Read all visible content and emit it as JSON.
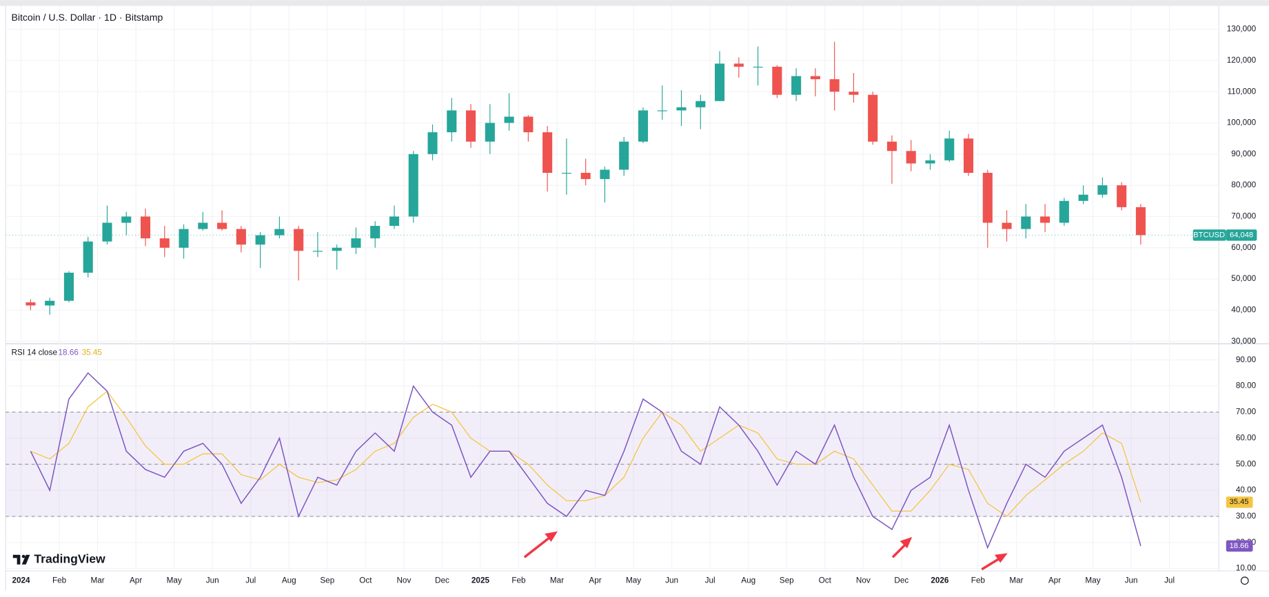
{
  "chart_data": [
    {
      "type": "candlestick",
      "title": "Bitcoin / U.S. Dollar · 1D · Bitstamp",
      "symbol": "BTCUSD",
      "last_price_label": "64,048",
      "up_color": "#26a69a",
      "down_color": "#ef5350",
      "grid": true,
      "categories": [
        "2024",
        null,
        "Feb",
        null,
        "Mar",
        null,
        "Apr",
        null,
        "May",
        null,
        "Jun",
        null,
        "Jul",
        null,
        "Aug",
        null,
        "Sep",
        null,
        "Oct",
        null,
        "Nov",
        null,
        "Dec",
        null,
        "2025",
        null,
        "Feb",
        null,
        "Mar",
        null,
        "Apr",
        null,
        "May",
        null,
        "Jun",
        null,
        "Jul",
        null,
        "Aug",
        null,
        "Sep",
        null,
        "Oct",
        null,
        "Nov",
        null,
        "Dec",
        null,
        "2026",
        null,
        "Feb",
        null,
        "Mar",
        null,
        "Apr",
        null,
        "May",
        null,
        "Jun",
        null,
        "Jul",
        null
      ],
      "ohlc": [
        [
          42500,
          43500,
          40000,
          41500
        ],
        [
          41500,
          44000,
          38500,
          43000
        ],
        [
          43000,
          52500,
          42500,
          52000
        ],
        [
          52000,
          63500,
          50500,
          62000
        ],
        [
          62000,
          73500,
          61000,
          68000
        ],
        [
          68000,
          71500,
          64000,
          70000
        ],
        [
          70000,
          72500,
          60500,
          63000
        ],
        [
          63000,
          67000,
          57000,
          60000
        ],
        [
          60000,
          67500,
          56500,
          66000
        ],
        [
          66000,
          71500,
          65500,
          68000
        ],
        [
          68000,
          72000,
          65500,
          66000
        ],
        [
          66000,
          67000,
          58500,
          61000
        ],
        [
          61000,
          65000,
          53500,
          64000
        ],
        [
          64000,
          70000,
          63000,
          66000
        ],
        [
          66000,
          67000,
          49500,
          59000
        ],
        [
          59000,
          65000,
          57000,
          59000
        ],
        [
          59000,
          61000,
          53000,
          60000
        ],
        [
          60000,
          66500,
          58000,
          63000
        ],
        [
          63000,
          68500,
          60000,
          67000
        ],
        [
          67000,
          73500,
          66000,
          70000
        ],
        [
          70000,
          91000,
          68000,
          90000
        ],
        [
          90000,
          99500,
          88000,
          97000
        ],
        [
          97000,
          108000,
          94000,
          104000
        ],
        [
          104000,
          106000,
          92000,
          94000
        ],
        [
          94000,
          106000,
          90000,
          100000
        ],
        [
          100000,
          109500,
          97500,
          102000
        ],
        [
          102000,
          102500,
          94000,
          97000
        ],
        [
          97000,
          99000,
          78000,
          84000
        ],
        [
          84000,
          95000,
          77000,
          84000
        ],
        [
          84000,
          88500,
          80000,
          82000
        ],
        [
          82000,
          86000,
          74500,
          85000
        ],
        [
          85000,
          95500,
          83000,
          94000
        ],
        [
          94000,
          105000,
          93500,
          104000
        ],
        [
          104000,
          112000,
          101000,
          104000
        ],
        [
          104000,
          110500,
          99000,
          105000
        ],
        [
          105000,
          109000,
          98000,
          107000
        ],
        [
          107000,
          123000,
          107000,
          119000
        ],
        [
          119000,
          121000,
          114500,
          118000
        ],
        [
          118000,
          124500,
          112000,
          118000
        ],
        [
          118000,
          118500,
          108000,
          109000
        ],
        [
          109000,
          117500,
          107000,
          115000
        ],
        [
          115000,
          117500,
          108500,
          114000
        ],
        [
          114000,
          126000,
          104000,
          110000
        ],
        [
          110000,
          116000,
          106500,
          109000
        ],
        [
          109000,
          110000,
          93000,
          94000
        ],
        [
          94000,
          96000,
          80500,
          91000
        ],
        [
          91000,
          94500,
          84500,
          87000
        ],
        [
          87000,
          90000,
          85000,
          88000
        ],
        [
          88000,
          97500,
          87500,
          95000
        ],
        [
          95000,
          96500,
          83000,
          84000
        ],
        [
          84000,
          85000,
          60000,
          68000
        ],
        [
          68000,
          72000,
          62000,
          66000
        ],
        [
          66000,
          74000,
          63000,
          70000
        ],
        [
          70000,
          74000,
          65000,
          68000
        ],
        [
          68000,
          76000,
          67000,
          75000
        ],
        [
          75000,
          80000,
          74000,
          77000
        ],
        [
          77000,
          82500,
          76000,
          80000
        ],
        [
          80000,
          81000,
          72000,
          73000
        ],
        [
          73000,
          74000,
          61000,
          64048
        ],
        null,
        null,
        null
      ],
      "ylim": [
        30000,
        130000
      ],
      "yticks": [
        {
          "value": 30000,
          "label": "30,000"
        },
        {
          "value": 40000,
          "label": "40,000"
        },
        {
          "value": 50000,
          "label": "50,000"
        },
        {
          "value": 60000,
          "label": "60,000"
        },
        {
          "value": 70000,
          "label": "70,000"
        },
        {
          "value": 80000,
          "label": "80,000"
        },
        {
          "value": 90000,
          "label": "90,000"
        },
        {
          "value": 100000,
          "label": "100,000"
        },
        {
          "value": 110000,
          "label": "110,000"
        },
        {
          "value": 120000,
          "label": "120,000"
        },
        {
          "value": 130000,
          "label": "130,000"
        }
      ]
    },
    {
      "type": "line",
      "title": "RSI 14 close",
      "grid": true,
      "upper_band": 70,
      "middle_line": 50,
      "lower_band": 30,
      "band_color": "#7e57c2",
      "series": [
        {
          "color": "#7e57c2",
          "values": [
            55,
            40,
            75,
            85,
            78,
            55,
            48,
            45,
            55,
            58,
            50,
            35,
            45,
            60,
            30,
            45,
            42,
            55,
            62,
            55,
            80,
            70,
            65,
            45,
            55,
            55,
            45,
            35,
            30,
            40,
            38,
            55,
            75,
            70,
            55,
            50,
            72,
            65,
            55,
            42,
            55,
            50,
            65,
            45,
            30,
            25,
            40,
            45,
            65,
            40,
            18,
            35,
            50,
            45,
            55,
            60,
            65,
            45,
            18.66,
            null,
            null,
            null
          ]
        },
        {
          "color": "#f5c542",
          "values": [
            55,
            52,
            58,
            72,
            78,
            68,
            57,
            50,
            50,
            54,
            54,
            46,
            44,
            50,
            45,
            43,
            44,
            48,
            55,
            58,
            68,
            73,
            70,
            60,
            55,
            55,
            50,
            42,
            36,
            36,
            38,
            45,
            60,
            70,
            65,
            55,
            60,
            65,
            62,
            52,
            50,
            50,
            55,
            52,
            42,
            32,
            32,
            40,
            50,
            48,
            35,
            30,
            38,
            44,
            50,
            55,
            62,
            58,
            35.45,
            null,
            null,
            null
          ]
        }
      ],
      "ylim": [
        10,
        90
      ],
      "yticks": [
        {
          "value": 10,
          "label": "10.00"
        },
        {
          "value": 20,
          "label": "20.00"
        },
        {
          "value": 30,
          "label": "30.00"
        },
        {
          "value": 40,
          "label": "40.00"
        },
        {
          "value": 50,
          "label": "50.00"
        },
        {
          "value": 60,
          "label": "60.00"
        },
        {
          "value": 70,
          "label": "70.00"
        },
        {
          "value": 80,
          "label": "80.00"
        },
        {
          "value": 90,
          "label": "90.00"
        }
      ]
    }
  ],
  "brand": "TradingView"
}
